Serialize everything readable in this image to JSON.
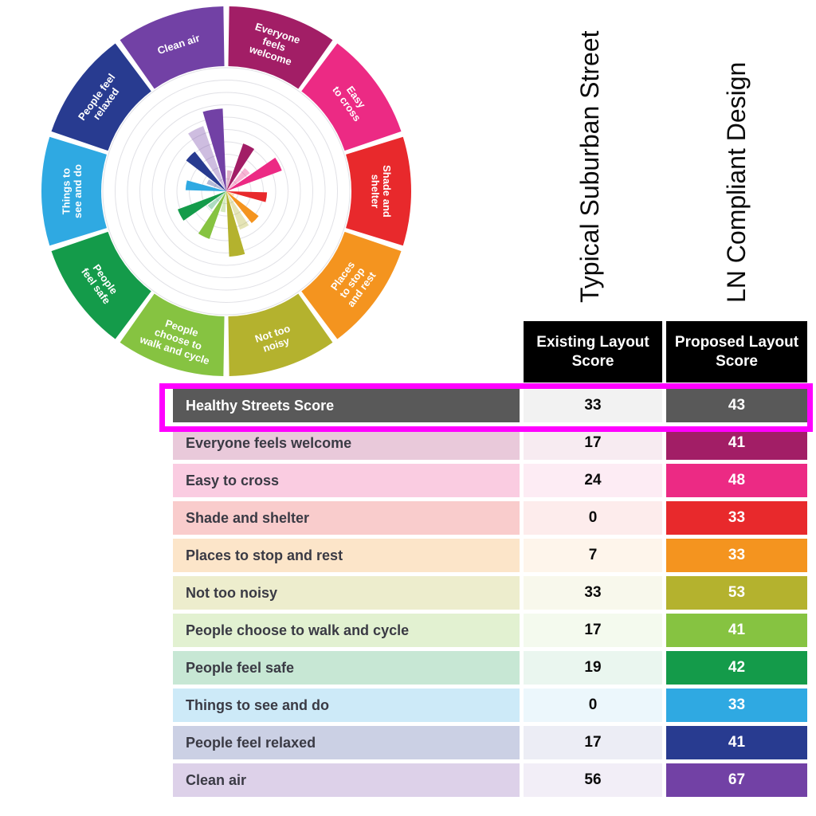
{
  "page": {
    "background": "#ffffff"
  },
  "indicators": [
    {
      "label": "Everyone feels welcome",
      "lines": [
        "Everyone",
        "feels",
        "welcome"
      ],
      "color": "#A21E66",
      "existing": 17,
      "proposed": 41
    },
    {
      "label": "Easy to cross",
      "lines": [
        "Easy",
        "to cross"
      ],
      "color": "#EC2A84",
      "existing": 24,
      "proposed": 48
    },
    {
      "label": "Shade and shelter",
      "lines": [
        "Shade and",
        "shelter"
      ],
      "color": "#E8292C",
      "existing": 0,
      "proposed": 33
    },
    {
      "label": "Places to stop and rest",
      "lines": [
        "Places",
        "to stop",
        "and rest"
      ],
      "color": "#F4941F",
      "existing": 7,
      "proposed": 33
    },
    {
      "label": "Not too noisy",
      "lines": [
        "Not too",
        "noisy"
      ],
      "color": "#B4B22E",
      "existing": 33,
      "proposed": 53
    },
    {
      "label": "People choose to walk and cycle",
      "lines": [
        "People",
        "choose to",
        "walk and cycle"
      ],
      "color": "#86C341",
      "existing": 17,
      "proposed": 41
    },
    {
      "label": "People feel safe",
      "lines": [
        "People",
        "feel safe"
      ],
      "color": "#149B4A",
      "existing": 19,
      "proposed": 42
    },
    {
      "label": "Things to see and do",
      "lines": [
        "Things to",
        "see and do"
      ],
      "color": "#2FA9E2",
      "existing": 0,
      "proposed": 33
    },
    {
      "label": "People feel relaxed",
      "lines": [
        "People feel",
        "relaxed"
      ],
      "color": "#283B90",
      "existing": 17,
      "proposed": 41
    },
    {
      "label": "Clean air",
      "lines": [
        "Clean air"
      ],
      "color": "#7241A5",
      "existing": 56,
      "proposed": 67
    }
  ],
  "wheel": {
    "grid_rings": 10,
    "scale_max": 100,
    "existing_tint_opacity": 0.35
  },
  "side_headers": [
    "Typical Suburban Street",
    "LN Compliant Design"
  ],
  "table": {
    "columns": [
      "Existing Layout Score",
      "Proposed Layout Score"
    ],
    "summary_row": {
      "label": "Healthy Streets Score",
      "existing": "33",
      "proposed": "43",
      "label_bg": "#595959",
      "existing_bg": "#F2F2F2",
      "proposed_bg": "#595959",
      "highlight_color": "#FF00FF"
    }
  },
  "chart_data": [
    {
      "type": "bar",
      "subtype": "polar-rose",
      "title": "Healthy Streets Indicators wheel",
      "categories": [
        "Everyone feels welcome",
        "Easy to cross",
        "Shade and shelter",
        "Places to stop and rest",
        "Not too noisy",
        "People choose to walk and cycle",
        "People feel safe",
        "Things to see and do",
        "People feel relaxed",
        "Clean air"
      ],
      "series": [
        {
          "name": "Existing Layout Score",
          "values": [
            17,
            24,
            0,
            7,
            33,
            17,
            19,
            0,
            17,
            56
          ]
        },
        {
          "name": "Proposed Layout Score",
          "values": [
            41,
            48,
            33,
            33,
            53,
            41,
            42,
            33,
            41,
            67
          ]
        }
      ],
      "rlim": [
        0,
        100
      ],
      "grid": true,
      "legend_position": "none",
      "colors": [
        "#A21E66",
        "#EC2A84",
        "#E8292C",
        "#F4941F",
        "#B4B22E",
        "#86C341",
        "#149B4A",
        "#2FA9E2",
        "#283B90",
        "#7241A5"
      ]
    },
    {
      "type": "table",
      "columns": [
        "",
        "Existing Layout Score",
        "Proposed Layout Score"
      ],
      "column_annotations": [
        "",
        "Typical Suburban Street",
        "LN Compliant Design"
      ],
      "rows": [
        [
          "Healthy Streets Score",
          33,
          43
        ],
        [
          "Everyone feels welcome",
          17,
          41
        ],
        [
          "Easy to cross",
          24,
          48
        ],
        [
          "Shade and shelter",
          0,
          33
        ],
        [
          "Places to stop and rest",
          7,
          33
        ],
        [
          "Not too noisy",
          33,
          53
        ],
        [
          "People choose to walk and cycle",
          17,
          41
        ],
        [
          "People feel safe",
          19,
          42
        ],
        [
          "Things to see and do",
          0,
          33
        ],
        [
          "People feel relaxed",
          17,
          41
        ],
        [
          "Clean air",
          56,
          67
        ]
      ],
      "highlighted_row": "Healthy Streets Score"
    }
  ]
}
